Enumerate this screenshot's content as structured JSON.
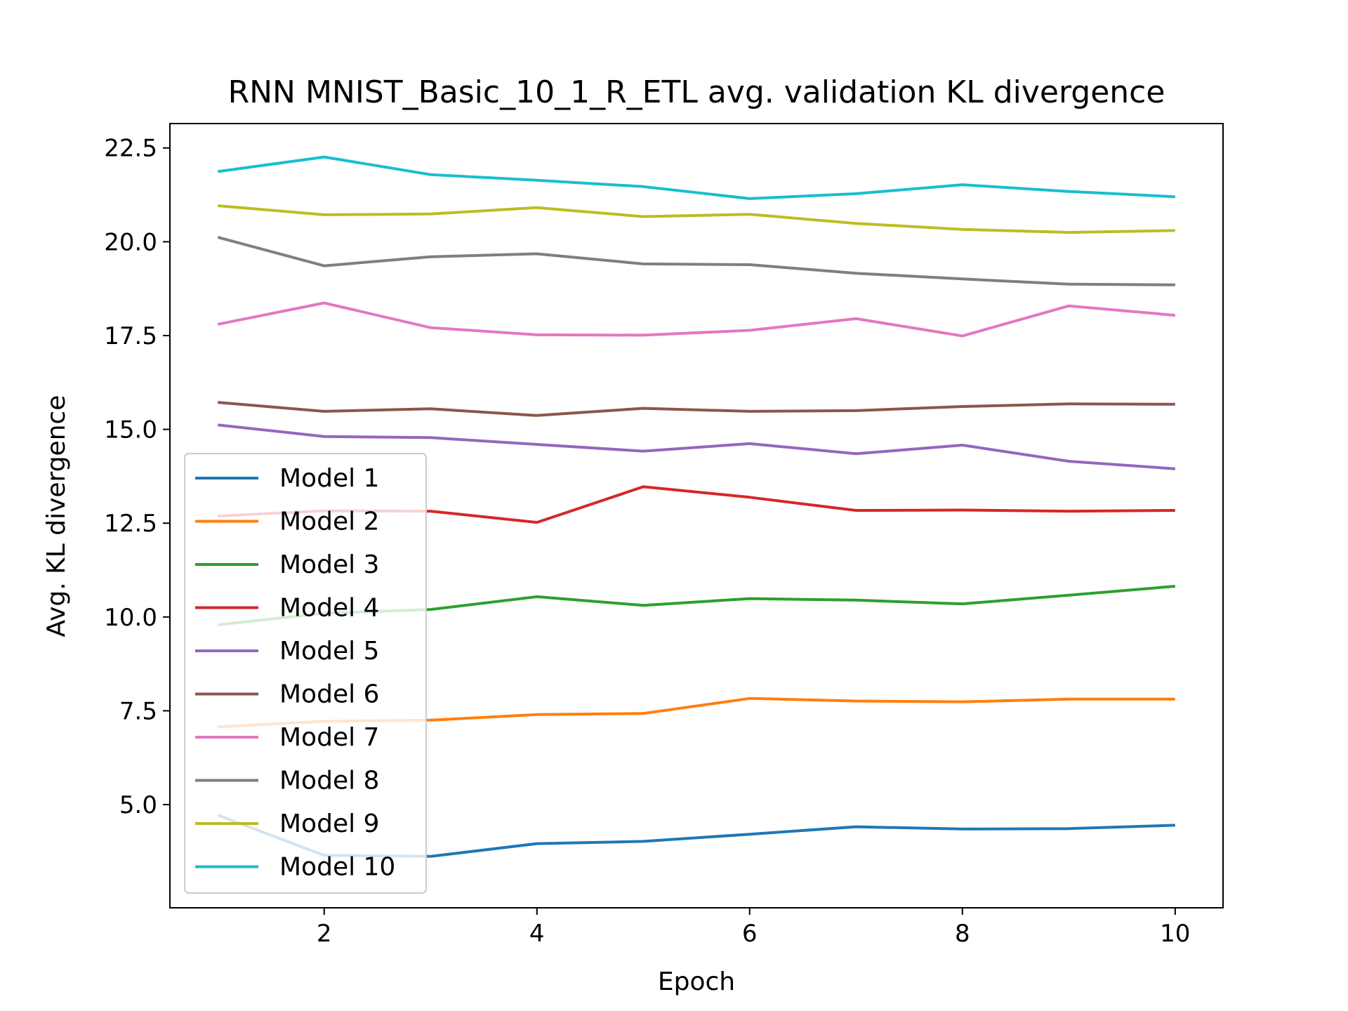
{
  "chart_data": {
    "type": "line",
    "title": "RNN MNIST_Basic_10_1_R_ETL avg. validation KL divergence",
    "xlabel": "Epoch",
    "ylabel": "Avg. KL divergence",
    "xlim": [
      0.55,
      10.45
    ],
    "ylim": [
      2.25,
      23.15
    ],
    "x_ticks": [
      2,
      4,
      6,
      8,
      10
    ],
    "x_tick_labels": [
      "2",
      "4",
      "6",
      "8",
      "10"
    ],
    "y_ticks": [
      5.0,
      7.5,
      10.0,
      12.5,
      15.0,
      17.5,
      20.0,
      22.5
    ],
    "y_tick_labels": [
      "5.0",
      "7.5",
      "10.0",
      "12.5",
      "15.0",
      "17.5",
      "20.0",
      "22.5"
    ],
    "grid": false,
    "legend_position": "lower-left",
    "x": [
      1,
      2,
      3,
      4,
      5,
      6,
      7,
      8,
      9,
      10
    ],
    "series": [
      {
        "name": "Model 1",
        "color": "#1f77b4",
        "values": [
          4.72,
          3.65,
          3.62,
          3.96,
          4.02,
          4.21,
          4.41,
          4.35,
          4.36,
          4.45
        ]
      },
      {
        "name": "Model 2",
        "color": "#ff7f0e",
        "values": [
          7.07,
          7.22,
          7.25,
          7.4,
          7.43,
          7.83,
          7.76,
          7.74,
          7.81,
          7.81
        ]
      },
      {
        "name": "Model 3",
        "color": "#2ca02c",
        "values": [
          9.79,
          10.1,
          10.2,
          10.54,
          10.31,
          10.49,
          10.45,
          10.35,
          10.58,
          10.82
        ]
      },
      {
        "name": "Model 4",
        "color": "#d62728",
        "values": [
          12.69,
          12.83,
          12.82,
          12.52,
          13.47,
          13.19,
          12.84,
          12.85,
          12.82,
          12.84
        ]
      },
      {
        "name": "Model 5",
        "color": "#9467bd",
        "values": [
          15.12,
          14.81,
          14.78,
          14.6,
          14.42,
          14.62,
          14.35,
          14.58,
          14.15,
          13.95
        ]
      },
      {
        "name": "Model 6",
        "color": "#8c564b",
        "values": [
          15.72,
          15.48,
          15.55,
          15.37,
          15.56,
          15.48,
          15.5,
          15.61,
          15.68,
          15.67
        ]
      },
      {
        "name": "Model 7",
        "color": "#e377c2",
        "values": [
          17.8,
          18.37,
          17.71,
          17.52,
          17.51,
          17.64,
          17.95,
          17.49,
          18.29,
          18.04
        ]
      },
      {
        "name": "Model 8",
        "color": "#7f7f7f",
        "values": [
          20.12,
          19.36,
          19.6,
          19.68,
          19.41,
          19.39,
          19.16,
          19.01,
          18.87,
          18.85
        ]
      },
      {
        "name": "Model 9",
        "color": "#bcbd22",
        "values": [
          20.96,
          20.72,
          20.74,
          20.91,
          20.67,
          20.73,
          20.49,
          20.33,
          20.25,
          20.3
        ]
      },
      {
        "name": "Model 10",
        "color": "#17becf",
        "values": [
          21.87,
          22.26,
          21.79,
          21.64,
          21.47,
          21.15,
          21.28,
          21.52,
          21.34,
          21.2
        ]
      }
    ]
  }
}
